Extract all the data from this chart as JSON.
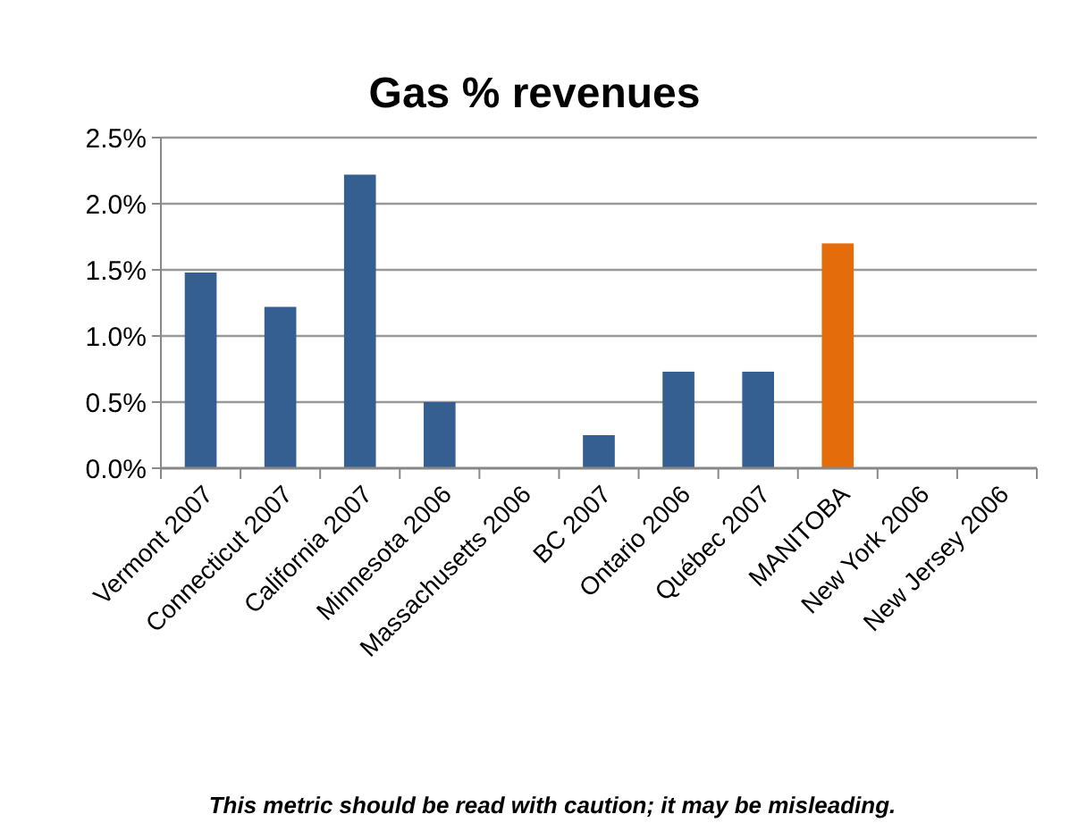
{
  "chart_data": {
    "type": "bar",
    "title": "Gas % revenues",
    "categories": [
      "Vermont 2007",
      "Connecticut 2007",
      "California 2007",
      "Minnesota 2006",
      "Massachusetts 2006",
      "BC 2007",
      "Ontario 2006",
      "Québec 2007",
      "MANITOBA",
      "New York 2006",
      "New Jersey 2006"
    ],
    "values": [
      1.48,
      1.22,
      2.22,
      0.5,
      0,
      0.25,
      0.73,
      0.73,
      1.7,
      0,
      0
    ],
    "colors": [
      "#365f91",
      "#365f91",
      "#365f91",
      "#365f91",
      "#365f91",
      "#365f91",
      "#365f91",
      "#365f91",
      "#e46c0a",
      "#365f91",
      "#365f91"
    ],
    "ylim": [
      0,
      2.5
    ],
    "yticks": [
      {
        "value": 0,
        "label": "0.0%"
      },
      {
        "value": 0.5,
        "label": "0.5%"
      },
      {
        "value": 1,
        "label": "1.0%"
      },
      {
        "value": 1.5,
        "label": "1.5%"
      },
      {
        "value": 2,
        "label": "2.0%"
      },
      {
        "value": 2.5,
        "label": "2.5%"
      }
    ],
    "grid": "y",
    "annotations": [
      "This metric should be read with caution; it may be misleading."
    ]
  }
}
